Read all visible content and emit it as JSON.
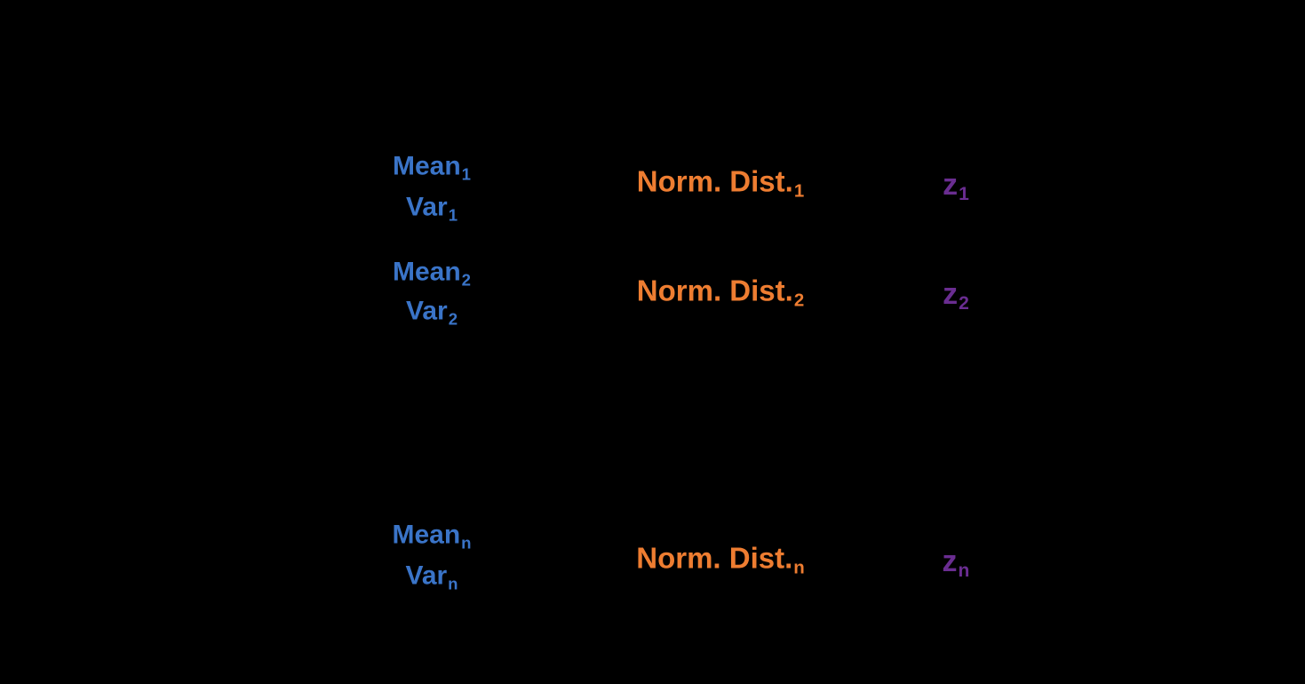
{
  "diagram": {
    "background_color": "#000000",
    "colors": {
      "mean_var_text": "#3A74C8",
      "norm_dist_text": "#EE7D31",
      "z_text": "#6A2D91"
    },
    "rows": [
      {
        "index": "1",
        "mean": {
          "base": "Mean",
          "sub": "1"
        },
        "var": {
          "base": "Var",
          "sub": "1"
        },
        "dist": {
          "base": "Norm. Dist.",
          "sub": "1"
        },
        "z": {
          "base": "z",
          "sub": "1"
        }
      },
      {
        "index": "2",
        "mean": {
          "base": "Mean",
          "sub": "2"
        },
        "var": {
          "base": "Var",
          "sub": "2"
        },
        "dist": {
          "base": "Norm. Dist.",
          "sub": "2"
        },
        "z": {
          "base": "z",
          "sub": "2"
        }
      },
      {
        "index": "n",
        "mean": {
          "base": "Mean",
          "sub": "n"
        },
        "var": {
          "base": "Var",
          "sub": "n"
        },
        "dist": {
          "base": "Norm. Dist.",
          "sub": "n"
        },
        "z": {
          "base": "z",
          "sub": "n"
        }
      }
    ]
  }
}
